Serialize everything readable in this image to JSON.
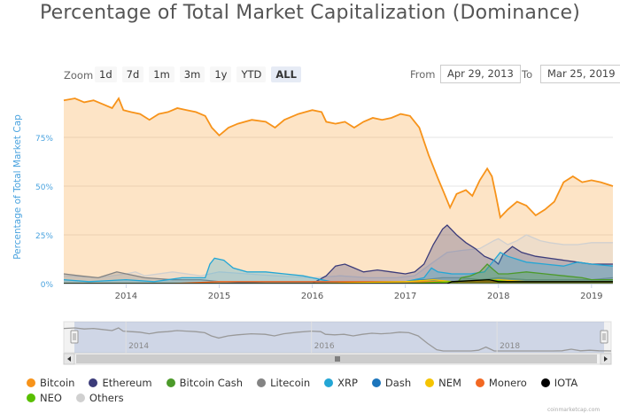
{
  "chart_title": "Percentage of Total Market Capitalization (Dominance)",
  "zoom": {
    "label": "Zoom",
    "buttons": [
      {
        "label": "1d",
        "active": false
      },
      {
        "label": "7d",
        "active": false
      },
      {
        "label": "1m",
        "active": false
      },
      {
        "label": "3m",
        "active": false
      },
      {
        "label": "1y",
        "active": false
      },
      {
        "label": "YTD",
        "active": false
      },
      {
        "label": "ALL",
        "active": true
      }
    ]
  },
  "range": {
    "from_label": "From",
    "from_value": "Apr 29, 2013",
    "to_label": "To",
    "to_value": "Mar 25, 2019"
  },
  "watermark": "coinmarketcap.com",
  "chart_data": {
    "type": "area",
    "ylabel": "Percentage of Total Market Cap",
    "y_ticks": [
      "0%",
      "25%",
      "50%",
      "75%"
    ],
    "ylim": [
      0,
      100
    ],
    "x_ticks": [
      "2014",
      "2015",
      "2016",
      "2017",
      "2018",
      "2019"
    ],
    "xlim": [
      2013.33,
      2019.23
    ],
    "grid": true,
    "legend_position": "bottom",
    "navigator": {
      "x_ticks": [
        "2014",
        "2016",
        "2018"
      ]
    },
    "series": [
      {
        "name": "Bitcoin",
        "color": "#f7931a",
        "data": [
          [
            2013.33,
            94
          ],
          [
            2013.45,
            95
          ],
          [
            2013.55,
            93
          ],
          [
            2013.65,
            94
          ],
          [
            2013.75,
            92
          ],
          [
            2013.85,
            90
          ],
          [
            2013.92,
            95
          ],
          [
            2013.97,
            89
          ],
          [
            2014.05,
            88
          ],
          [
            2014.15,
            87
          ],
          [
            2014.25,
            84
          ],
          [
            2014.35,
            87
          ],
          [
            2014.45,
            88
          ],
          [
            2014.55,
            90
          ],
          [
            2014.65,
            89
          ],
          [
            2014.75,
            88
          ],
          [
            2014.85,
            86
          ],
          [
            2014.92,
            80
          ],
          [
            2015.0,
            76
          ],
          [
            2015.1,
            80
          ],
          [
            2015.2,
            82
          ],
          [
            2015.35,
            84
          ],
          [
            2015.5,
            83
          ],
          [
            2015.6,
            80
          ],
          [
            2015.7,
            84
          ],
          [
            2015.85,
            87
          ],
          [
            2016.0,
            89
          ],
          [
            2016.1,
            88
          ],
          [
            2016.15,
            83
          ],
          [
            2016.25,
            82
          ],
          [
            2016.35,
            83
          ],
          [
            2016.45,
            80
          ],
          [
            2016.55,
            83
          ],
          [
            2016.65,
            85
          ],
          [
            2016.75,
            84
          ],
          [
            2016.85,
            85
          ],
          [
            2016.95,
            87
          ],
          [
            2017.05,
            86
          ],
          [
            2017.15,
            80
          ],
          [
            2017.25,
            66
          ],
          [
            2017.35,
            54
          ],
          [
            2017.42,
            46
          ],
          [
            2017.48,
            39
          ],
          [
            2017.55,
            46
          ],
          [
            2017.65,
            48
          ],
          [
            2017.72,
            45
          ],
          [
            2017.8,
            53
          ],
          [
            2017.88,
            59
          ],
          [
            2017.93,
            55
          ],
          [
            2017.97,
            46
          ],
          [
            2018.02,
            34
          ],
          [
            2018.1,
            38
          ],
          [
            2018.2,
            42
          ],
          [
            2018.3,
            40
          ],
          [
            2018.4,
            35
          ],
          [
            2018.5,
            38
          ],
          [
            2018.6,
            42
          ],
          [
            2018.7,
            52
          ],
          [
            2018.8,
            55
          ],
          [
            2018.9,
            52
          ],
          [
            2019.0,
            53
          ],
          [
            2019.1,
            52
          ],
          [
            2019.23,
            50
          ]
        ]
      },
      {
        "name": "Ethereum",
        "color": "#3c3c7a",
        "data": [
          [
            2013.33,
            0
          ],
          [
            2015.6,
            0
          ],
          [
            2016.0,
            0
          ],
          [
            2016.15,
            4
          ],
          [
            2016.25,
            9
          ],
          [
            2016.35,
            10
          ],
          [
            2016.45,
            8
          ],
          [
            2016.55,
            6
          ],
          [
            2016.7,
            7
          ],
          [
            2016.85,
            6
          ],
          [
            2017.0,
            5
          ],
          [
            2017.1,
            6
          ],
          [
            2017.2,
            10
          ],
          [
            2017.3,
            20
          ],
          [
            2017.4,
            28
          ],
          [
            2017.45,
            30
          ],
          [
            2017.55,
            25
          ],
          [
            2017.65,
            21
          ],
          [
            2017.75,
            18
          ],
          [
            2017.85,
            14
          ],
          [
            2017.95,
            12
          ],
          [
            2018.0,
            10
          ],
          [
            2018.05,
            15
          ],
          [
            2018.15,
            19
          ],
          [
            2018.25,
            16
          ],
          [
            2018.4,
            14
          ],
          [
            2018.55,
            13
          ],
          [
            2018.7,
            12
          ],
          [
            2018.85,
            11
          ],
          [
            2019.0,
            10
          ],
          [
            2019.1,
            10
          ],
          [
            2019.23,
            10
          ]
        ]
      },
      {
        "name": "Bitcoin Cash",
        "color": "#4c9a2a",
        "data": [
          [
            2013.33,
            0
          ],
          [
            2017.55,
            0
          ],
          [
            2017.6,
            3
          ],
          [
            2017.7,
            4
          ],
          [
            2017.8,
            6
          ],
          [
            2017.88,
            10
          ],
          [
            2017.95,
            7
          ],
          [
            2018.0,
            5
          ],
          [
            2018.1,
            5
          ],
          [
            2018.3,
            6
          ],
          [
            2018.5,
            5
          ],
          [
            2018.7,
            4
          ],
          [
            2018.9,
            3
          ],
          [
            2019.0,
            2
          ],
          [
            2019.23,
            2
          ]
        ]
      },
      {
        "name": "Litecoin",
        "color": "#838383",
        "data": [
          [
            2013.33,
            5
          ],
          [
            2013.5,
            4
          ],
          [
            2013.7,
            3
          ],
          [
            2013.9,
            6
          ],
          [
            2014.0,
            5
          ],
          [
            2014.2,
            3
          ],
          [
            2014.5,
            2
          ],
          [
            2014.8,
            2
          ],
          [
            2015.0,
            1
          ],
          [
            2015.5,
            1
          ],
          [
            2016.0,
            1
          ],
          [
            2016.5,
            1
          ],
          [
            2017.0,
            1
          ],
          [
            2017.2,
            2
          ],
          [
            2017.4,
            3
          ],
          [
            2017.6,
            3
          ],
          [
            2017.8,
            2
          ],
          [
            2018.0,
            3
          ],
          [
            2018.3,
            2
          ],
          [
            2018.6,
            2
          ],
          [
            2019.0,
            2
          ],
          [
            2019.23,
            3
          ]
        ]
      },
      {
        "name": "XRP",
        "color": "#23a6d5",
        "data": [
          [
            2013.33,
            2
          ],
          [
            2013.6,
            1
          ],
          [
            2014.0,
            2
          ],
          [
            2014.3,
            1
          ],
          [
            2014.6,
            3
          ],
          [
            2014.85,
            3
          ],
          [
            2014.9,
            10
          ],
          [
            2014.95,
            13
          ],
          [
            2015.05,
            12
          ],
          [
            2015.15,
            8
          ],
          [
            2015.3,
            6
          ],
          [
            2015.5,
            6
          ],
          [
            2015.7,
            5
          ],
          [
            2015.9,
            4
          ],
          [
            2016.0,
            3
          ],
          [
            2016.2,
            1
          ],
          [
            2016.5,
            1
          ],
          [
            2017.0,
            1
          ],
          [
            2017.2,
            3
          ],
          [
            2017.28,
            8
          ],
          [
            2017.35,
            6
          ],
          [
            2017.5,
            5
          ],
          [
            2017.7,
            5
          ],
          [
            2017.85,
            6
          ],
          [
            2017.97,
            13
          ],
          [
            2018.02,
            16
          ],
          [
            2018.1,
            14
          ],
          [
            2018.3,
            11
          ],
          [
            2018.5,
            10
          ],
          [
            2018.7,
            9
          ],
          [
            2018.85,
            11
          ],
          [
            2019.0,
            10
          ],
          [
            2019.23,
            9
          ]
        ]
      },
      {
        "name": "Dash",
        "color": "#1c75bc",
        "data": [
          [
            2013.33,
            0
          ],
          [
            2015.0,
            0
          ],
          [
            2015.5,
            1
          ],
          [
            2016.0,
            1
          ],
          [
            2016.5,
            1
          ],
          [
            2017.0,
            1
          ],
          [
            2017.2,
            2
          ],
          [
            2017.5,
            1
          ],
          [
            2018.0,
            1
          ],
          [
            2019.23,
            1
          ]
        ]
      },
      {
        "name": "NEM",
        "color": "#f5c400",
        "data": [
          [
            2013.33,
            0
          ],
          [
            2015.3,
            0
          ],
          [
            2016.0,
            0
          ],
          [
            2017.0,
            1
          ],
          [
            2017.3,
            2
          ],
          [
            2017.5,
            1
          ],
          [
            2018.0,
            2
          ],
          [
            2018.3,
            1
          ],
          [
            2019.23,
            1
          ]
        ]
      },
      {
        "name": "Monero",
        "color": "#f26822",
        "data": [
          [
            2013.33,
            0
          ],
          [
            2014.5,
            0
          ],
          [
            2015.0,
            1
          ],
          [
            2016.0,
            1
          ],
          [
            2016.5,
            1
          ],
          [
            2017.0,
            1
          ],
          [
            2017.5,
            1
          ],
          [
            2018.0,
            1
          ],
          [
            2019.23,
            1
          ]
        ]
      },
      {
        "name": "IOTA",
        "color": "#000000",
        "data": [
          [
            2013.33,
            0
          ],
          [
            2017.45,
            0
          ],
          [
            2017.5,
            1
          ],
          [
            2017.9,
            2
          ],
          [
            2018.0,
            1
          ],
          [
            2018.5,
            1
          ],
          [
            2019.23,
            1
          ]
        ]
      },
      {
        "name": "NEO",
        "color": "#58bf00",
        "data": [
          [
            2013.33,
            0
          ],
          [
            2017.0,
            0
          ],
          [
            2017.5,
            1
          ],
          [
            2017.9,
            2
          ],
          [
            2018.1,
            1
          ],
          [
            2018.5,
            1
          ],
          [
            2019.23,
            1
          ]
        ]
      },
      {
        "name": "Others",
        "color": "#d0d0d0",
        "data": [
          [
            2013.33,
            4
          ],
          [
            2013.7,
            3
          ],
          [
            2014.0,
            5
          ],
          [
            2014.1,
            6
          ],
          [
            2014.2,
            4
          ],
          [
            2014.5,
            6
          ],
          [
            2014.8,
            4
          ],
          [
            2015.0,
            6
          ],
          [
            2015.3,
            5
          ],
          [
            2015.6,
            4
          ],
          [
            2016.0,
            3
          ],
          [
            2016.3,
            4
          ],
          [
            2016.6,
            3
          ],
          [
            2016.9,
            3
          ],
          [
            2017.1,
            4
          ],
          [
            2017.3,
            11
          ],
          [
            2017.45,
            16
          ],
          [
            2017.6,
            17
          ],
          [
            2017.8,
            18
          ],
          [
            2017.95,
            22
          ],
          [
            2018.0,
            23
          ],
          [
            2018.1,
            20
          ],
          [
            2018.2,
            22
          ],
          [
            2018.3,
            25
          ],
          [
            2018.45,
            22
          ],
          [
            2018.55,
            21
          ],
          [
            2018.7,
            20
          ],
          [
            2018.85,
            20
          ],
          [
            2019.0,
            21
          ],
          [
            2019.23,
            21
          ]
        ]
      }
    ]
  }
}
